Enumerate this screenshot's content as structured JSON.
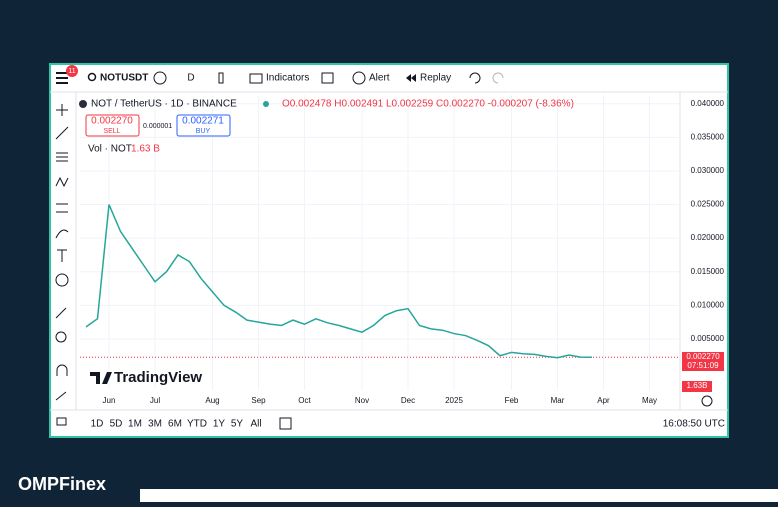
{
  "ui": {
    "brand": "OMPFinex",
    "badge": "11",
    "symbol": "NOTUSDT",
    "interval": "D",
    "indicators": "Indicators",
    "alert": "Alert",
    "replay": "Replay",
    "pair": "NOT / TetherUS · 1D · BINANCE",
    "ohlc": "O0.002478 H0.002491 L0.002259 C0.002270 -0.000207 (-8.36%)",
    "sell_price": "0.002270",
    "sell": "SELL",
    "spread": "0.000001",
    "buy_price": "0.002271",
    "buy": "BUY",
    "vol_label": "Vol · NOT",
    "vol_value": "1.63 B",
    "watermark": "TradingView",
    "countdown": "07:51:09",
    "vol_tag": "1.63B",
    "ranges": [
      "1D",
      "5D",
      "1M",
      "3M",
      "6M",
      "YTD",
      "1Y",
      "5Y",
      "All"
    ],
    "clock": "16:08:50 UTC"
  },
  "chart_data": {
    "type": "line",
    "categories": [
      null,
      null,
      "Jun",
      null,
      null,
      null,
      "Jul",
      null,
      null,
      null,
      null,
      "Aug",
      null,
      null,
      null,
      "Sep",
      null,
      null,
      null,
      "Oct",
      null,
      null,
      null,
      null,
      "Nov",
      null,
      null,
      null,
      "Dec",
      null,
      null,
      null,
      "2025",
      null,
      null,
      null,
      null,
      "Feb",
      null,
      null,
      null,
      "Mar",
      null,
      null,
      null,
      "Apr",
      null,
      null,
      null,
      "May"
    ],
    "series": [
      {
        "name": "NOT / TetherUS",
        "color": "#26a69a",
        "values": [
          0.0068,
          0.008,
          0.025,
          0.021,
          0.0185,
          0.016,
          0.0135,
          0.015,
          0.0175,
          0.0165,
          0.014,
          0.012,
          0.01,
          0.009,
          0.0078,
          0.0075,
          0.0072,
          0.007,
          0.0078,
          0.0072,
          0.008,
          0.0074,
          0.007,
          0.0065,
          0.006,
          0.007,
          0.0085,
          0.0092,
          0.0095,
          0.007,
          0.0065,
          0.0063,
          0.0058,
          0.0055,
          0.0048,
          0.004,
          0.0025,
          0.003,
          0.0028,
          0.0027,
          0.0024,
          0.0022,
          0.0026,
          0.0023,
          0.00227,
          null,
          null,
          null,
          null,
          null
        ]
      }
    ],
    "last_price": {
      "value": 0.00227,
      "label": "0.002270"
    },
    "ylim": [
      -0.0026,
      0.0413
    ],
    "yticks": [
      {
        "value": 0.04,
        "label": "0.040000"
      },
      {
        "value": 0.035,
        "label": "0.035000"
      },
      {
        "value": 0.03,
        "label": "0.030000"
      },
      {
        "value": 0.025,
        "label": "0.025000"
      },
      {
        "value": 0.02,
        "label": "0.020000"
      },
      {
        "value": 0.015,
        "label": "0.015000"
      },
      {
        "value": 0.01,
        "label": "0.010000"
      },
      {
        "value": 0.005,
        "label": "0.005000"
      }
    ],
    "grid": true
  }
}
